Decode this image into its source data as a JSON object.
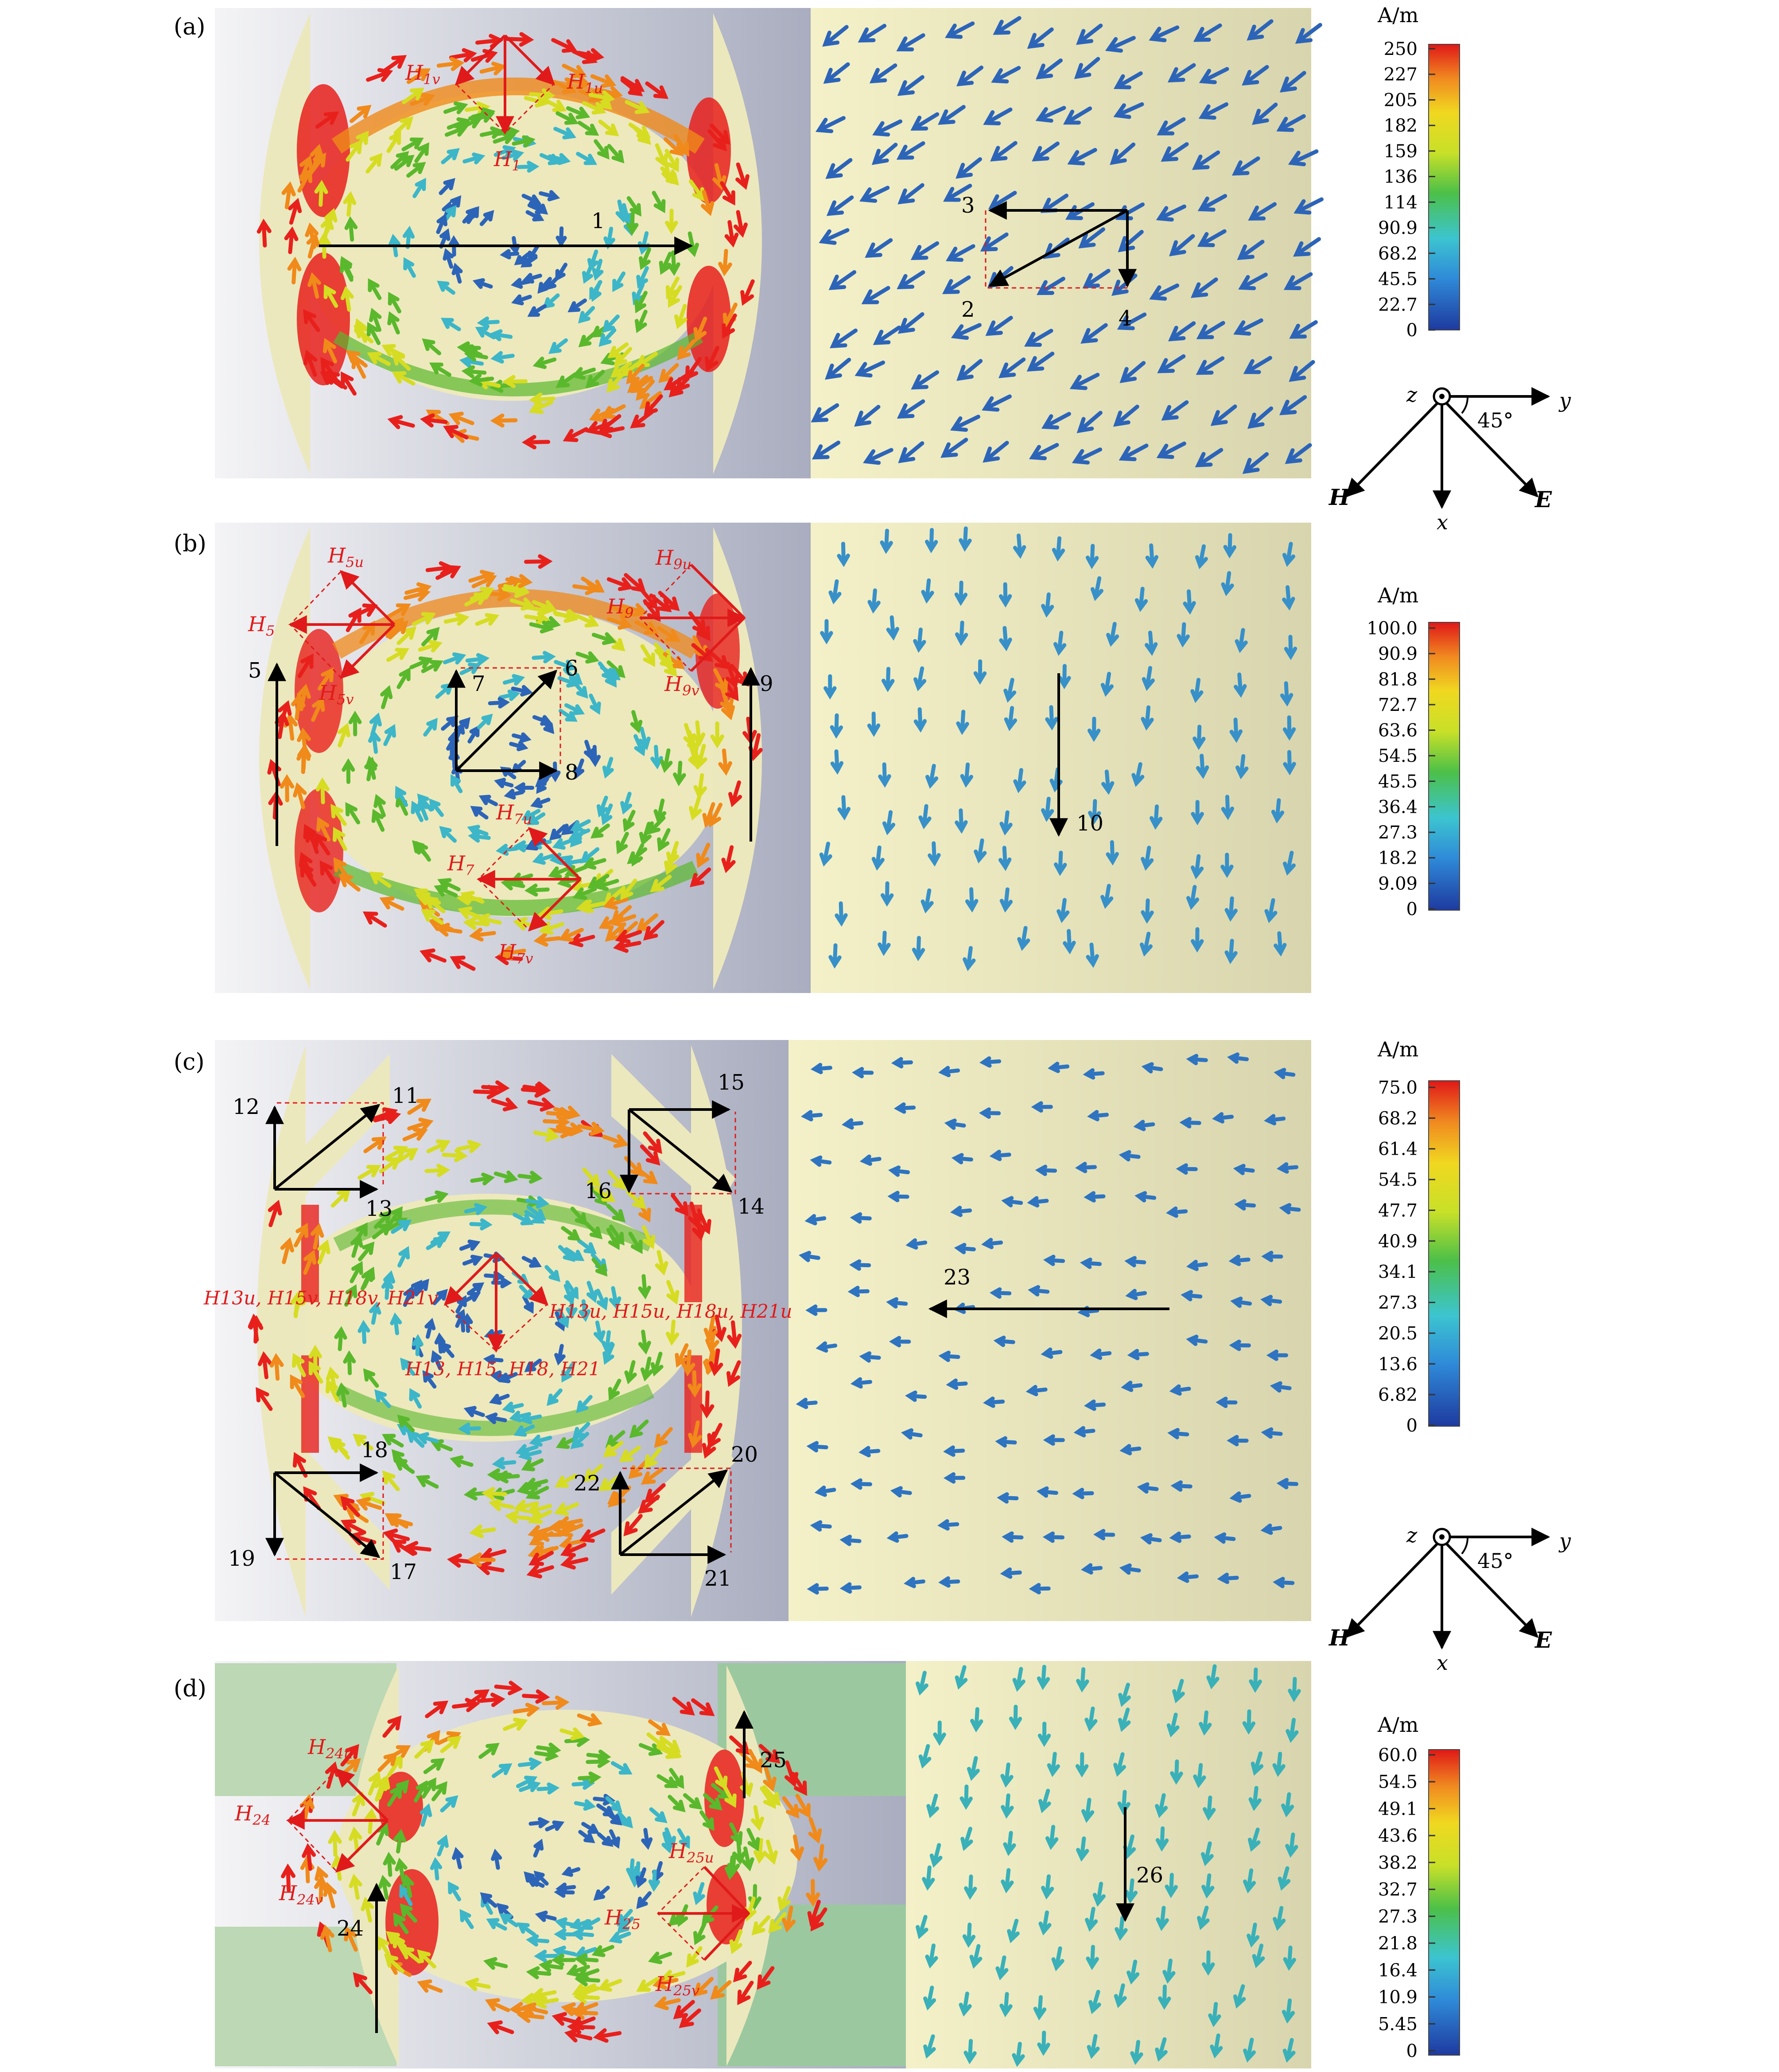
{
  "colors": {
    "vector_red": "#e8201c",
    "vector_orange": "#f08a1a",
    "vector_yellow": "#d6dc22",
    "vector_green": "#5ab82c",
    "vector_cyan": "#3cb6c8",
    "vector_blue": "#2c64b8",
    "annotation_red": "#e01a1a",
    "annotation_black": "#000000",
    "background_cream": "#f2efc6",
    "background_gray": "#b2b6c6"
  },
  "panels": [
    {
      "label": "(a)",
      "annotations": [
        "H1v",
        "H1u",
        "H1",
        "1",
        "3",
        "2",
        "4"
      ],
      "labels": {
        "h1v": "H",
        "h1v_sub": "1v",
        "h1u": "H",
        "h1u_sub": "1u",
        "h1": "H",
        "h1_sub": "1",
        "n1": "1",
        "n2": "2",
        "n3": "3",
        "n4": "4"
      },
      "colorbar": {
        "unit": "A/m",
        "ticks": [
          "250",
          "227",
          "205",
          "182",
          "159",
          "136",
          "114",
          "90.9",
          "68.2",
          "45.5",
          "22.7",
          "0"
        ]
      }
    },
    {
      "label": "(b)",
      "labels": {
        "h5u": "H",
        "h5u_sub": "5u",
        "h5": "H",
        "h5_sub": "5",
        "h5v": "H",
        "h5v_sub": "5v",
        "h9u": "H",
        "h9u_sub": "9u",
        "h9": "H",
        "h9_sub": "9",
        "h9v": "H",
        "h9v_sub": "9v",
        "h7u": "H",
        "h7u_sub": "7u",
        "h7": "H",
        "h7_sub": "7",
        "h7v": "H",
        "h7v_sub": "7v",
        "n5": "5",
        "n6": "6",
        "n7": "7",
        "n8": "8",
        "n9": "9",
        "n10": "10"
      },
      "colorbar": {
        "unit": "A/m",
        "ticks": [
          "100.0",
          "90.9",
          "81.8",
          "72.7",
          "63.6",
          "54.5",
          "45.5",
          "36.4",
          "27.3",
          "18.2",
          "9.09",
          "0"
        ]
      }
    },
    {
      "label": "(c)",
      "labels": {
        "n11": "11",
        "n12": "12",
        "n13": "13",
        "n14": "14",
        "n15": "15",
        "n16": "16",
        "n17": "17",
        "n18": "18",
        "n19": "19",
        "n20": "20",
        "n21": "21",
        "n22": "22",
        "n23": "23",
        "left_group": "H13u, H15v, H18v, H21v",
        "right_group": "H13u, H15u, H18u, H21u",
        "bottom_group": "H13, H15, H18, H21"
      },
      "colorbar": {
        "unit": "A/m",
        "ticks": [
          "75.0",
          "68.2",
          "61.4",
          "54.5",
          "47.7",
          "40.9",
          "34.1",
          "27.3",
          "20.5",
          "13.6",
          "6.82",
          "0"
        ]
      }
    },
    {
      "label": "(d)",
      "labels": {
        "h24u": "H",
        "h24u_sub": "24u",
        "h24": "H",
        "h24_sub": "24",
        "h24v": "H",
        "h24v_sub": "24v",
        "h25u": "H",
        "h25u_sub": "25u",
        "h25": "H",
        "h25_sub": "25",
        "h25v": "H",
        "h25v_sub": "25v",
        "n24": "24",
        "n25": "25",
        "n26": "26"
      },
      "colorbar": {
        "unit": "A/m",
        "ticks": [
          "60.0",
          "54.5",
          "49.1",
          "43.6",
          "38.2",
          "32.7",
          "27.3",
          "21.8",
          "16.4",
          "10.9",
          "5.45",
          "0"
        ]
      }
    }
  ],
  "axes_legend": {
    "z": "z",
    "y": "y",
    "x": "x",
    "H": "H",
    "E": "E",
    "angle": "45°"
  }
}
